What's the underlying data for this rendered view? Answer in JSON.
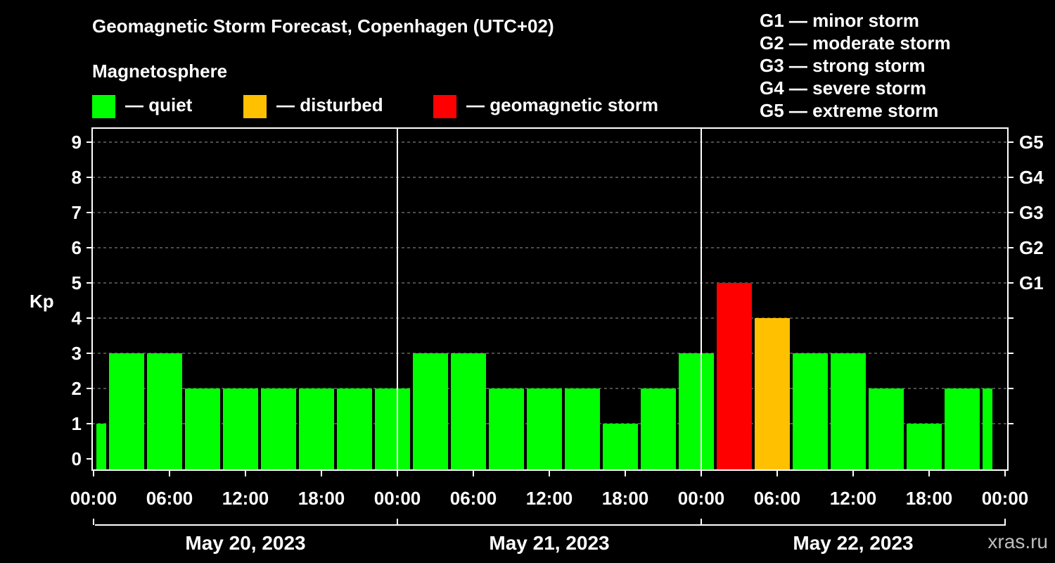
{
  "header": {
    "title": "Geomagnetic Storm Forecast, Copenhagen (UTC+02)",
    "magnetosphere_heading": "Magnetosphere"
  },
  "legend": [
    {
      "label": "— quiet",
      "color": "#00ff00"
    },
    {
      "label": "— disturbed",
      "color": "#ffc000"
    },
    {
      "label": "— geomagnetic storm",
      "color": "#ff0000"
    }
  ],
  "storm_scale": [
    "G1 — minor storm",
    "G2 — moderate storm",
    "G3 — strong storm",
    "G4 — severe storm",
    "G5 — extreme storm"
  ],
  "watermark": "xras.ru",
  "chart_data": {
    "type": "bar",
    "title": "Geomagnetic Storm Forecast, Copenhagen (UTC+02)",
    "ylabel": "Kp",
    "ylim": [
      0,
      9
    ],
    "yticks": [
      "0",
      "1",
      "2",
      "3",
      "4",
      "5",
      "6",
      "7",
      "8",
      "9"
    ],
    "right_axis": [
      {
        "kp": 5,
        "label": "G1"
      },
      {
        "kp": 6,
        "label": "G2"
      },
      {
        "kp": 7,
        "label": "G3"
      },
      {
        "kp": 8,
        "label": "G4"
      },
      {
        "kp": 9,
        "label": "G5"
      }
    ],
    "time_range_hours": [
      0,
      72
    ],
    "bar_start_hours": [
      0,
      1,
      4,
      7,
      10,
      13,
      16,
      19,
      22,
      25,
      28,
      31,
      34,
      37,
      40,
      43,
      46,
      49,
      52,
      55,
      58,
      61,
      64,
      67,
      70
    ],
    "bar_end_hours": [
      1,
      4,
      7,
      10,
      13,
      16,
      19,
      22,
      25,
      28,
      31,
      34,
      37,
      40,
      43,
      46,
      49,
      52,
      55,
      58,
      61,
      64,
      67,
      70,
      71
    ],
    "kp_values": [
      1,
      3,
      3,
      2,
      2,
      2,
      2,
      2,
      2,
      3,
      3,
      2,
      2,
      2,
      1,
      2,
      3,
      5,
      4,
      3,
      3,
      2,
      1,
      2,
      2
    ],
    "levels": [
      "quiet",
      "quiet",
      "quiet",
      "quiet",
      "quiet",
      "quiet",
      "quiet",
      "quiet",
      "quiet",
      "quiet",
      "quiet",
      "quiet",
      "quiet",
      "quiet",
      "quiet",
      "quiet",
      "quiet",
      "storm",
      "disturbed",
      "quiet",
      "quiet",
      "quiet",
      "quiet",
      "quiet",
      "quiet"
    ],
    "level_colors": {
      "quiet": "#00ff00",
      "disturbed": "#ffc000",
      "storm": "#ff0000"
    },
    "x_tick_hours": [
      0,
      6,
      12,
      18,
      24,
      30,
      36,
      42,
      48,
      54,
      60,
      66,
      72
    ],
    "x_tick_labels": [
      "00:00",
      "06:00",
      "12:00",
      "18:00",
      "00:00",
      "06:00",
      "12:00",
      "18:00",
      "00:00",
      "06:00",
      "12:00",
      "18:00",
      "00:00"
    ],
    "day_boundaries_hours": [
      24,
      48
    ],
    "days": [
      {
        "label": "May 20, 2023",
        "start": 0,
        "end": 24
      },
      {
        "label": "May 21, 2023",
        "start": 24,
        "end": 48
      },
      {
        "label": "May 22, 2023",
        "start": 48,
        "end": 72
      }
    ],
    "grid": "dashed horizontal at each Kp integer"
  }
}
